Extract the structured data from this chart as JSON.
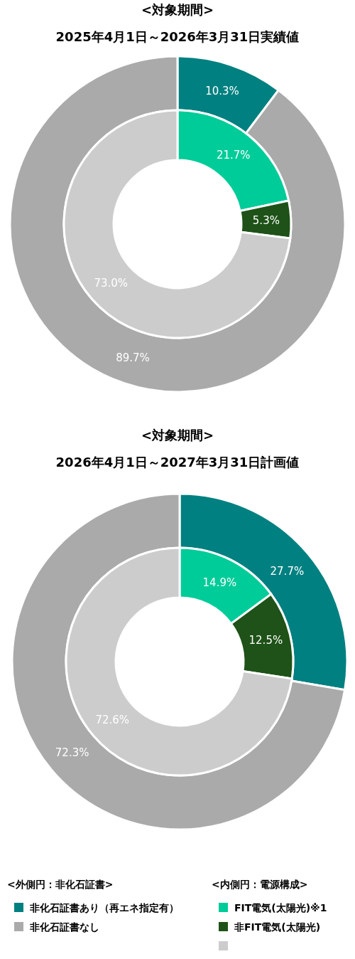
{
  "chart_data": [
    {
      "type": "donut",
      "title": "<対象期間>",
      "subtitle": "2025年4月1日～2026年3月31日実績値",
      "categories": [
        null,
        null
      ],
      "colors": [
        "#008080",
        "#aaaaaa"
      ],
      "values": [
        10.3,
        89.7
      ],
      "value_labels": [
        "10.3%",
        "89.7%"
      ]
    },
    {
      "type": "donut",
      "categories": [
        null,
        null,
        null
      ],
      "colors": [
        "#00cc99",
        "#1e5218",
        "#cccccc"
      ],
      "values": [
        21.7,
        5.3,
        73.0
      ],
      "value_labels": [
        "21.7%",
        "5.3%",
        "73.0%"
      ]
    },
    {
      "type": "donut",
      "title": "<対象期間>",
      "subtitle": "2026年4月1日～2027年3月31日計画値",
      "legend_title": "<外側円：非化石証書>",
      "legend": "bottom left",
      "categories": [
        "非化石証書あり（再エネ指定有）",
        "非化石証書なし"
      ],
      "colors": [
        "#008080",
        "#aaaaaa"
      ],
      "values": [
        27.7,
        72.3
      ],
      "value_labels": [
        "27.7%",
        "72.3%"
      ]
    },
    {
      "type": "donut",
      "legend_title": "<内側円：電源構成>",
      "legend": "bottom right",
      "categories": [
        "FIT電気(太陽光)※1",
        "非FIT電気(太陽光)",
        null
      ],
      "colors": [
        "#00cc99",
        "#1e5218",
        "#cccccc"
      ],
      "values": [
        14.9,
        12.5,
        72.6
      ],
      "value_labels": [
        "14.9%",
        "12.5%",
        "72.6%"
      ]
    }
  ]
}
